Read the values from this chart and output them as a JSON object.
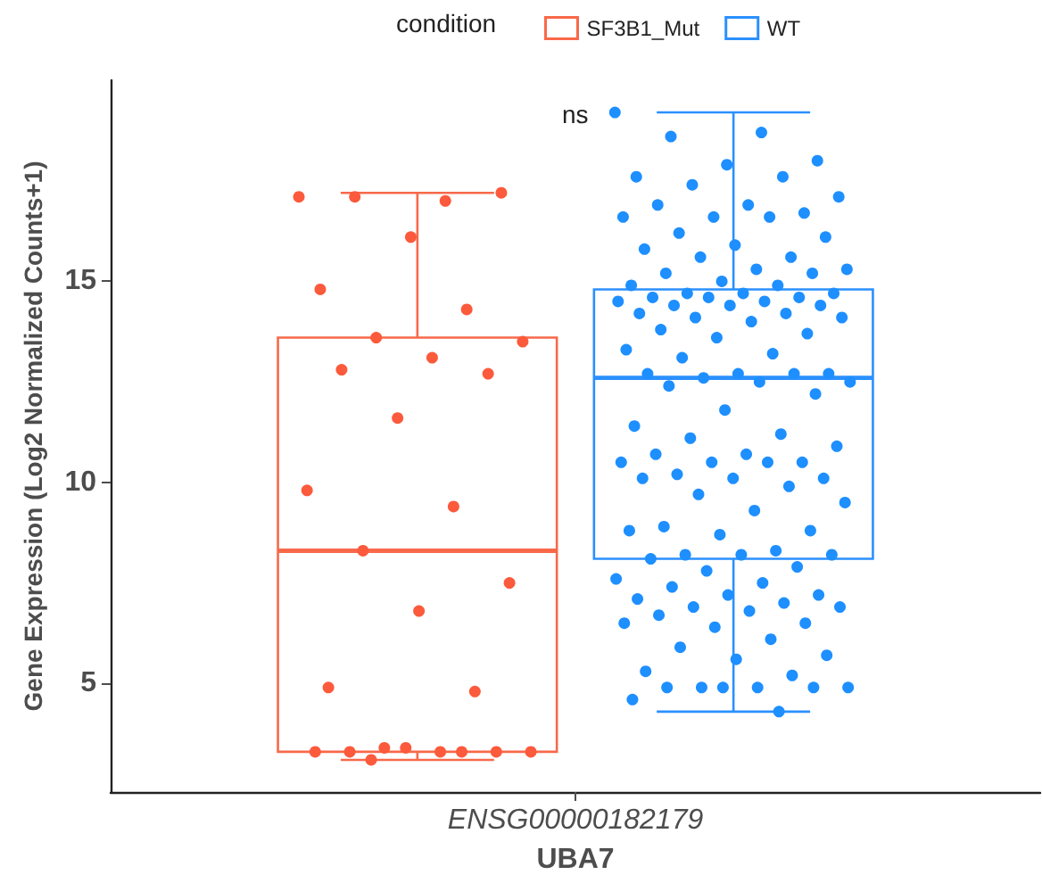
{
  "chart_data": {
    "type": "box",
    "xlabel": "UBA7",
    "ylabel": "Gene Expression (Log2 Normalized Counts+1)",
    "legend_title": "condition",
    "legend": "top",
    "grid": false,
    "marker": "circle",
    "annotations": [
      "ns"
    ],
    "categories": [
      "ENSG00000182179"
    ],
    "ylim": [
      2.3,
      20.0
    ],
    "yticks": [
      5,
      10,
      15
    ],
    "series": [
      {
        "name": "SF3B1_Mut",
        "color": "#f8694a",
        "boxes": [
          {
            "low": 3.1,
            "q1": 3.3,
            "median": 8.3,
            "q3": 13.6,
            "high": 17.2
          }
        ]
      },
      {
        "name": "WT",
        "color": "#2b90ff",
        "boxes": [
          {
            "low": 4.3,
            "q1": 8.1,
            "median": 12.6,
            "q3": 14.8,
            "high": 19.2
          }
        ]
      },
      {
        "type": "scatter",
        "color": "#fc5a3c",
        "x": [
          "ENSG00000182179",
          "ENSG00000182179",
          "ENSG00000182179",
          "ENSG00000182179",
          "ENSG00000182179",
          "ENSG00000182179",
          "ENSG00000182179",
          "ENSG00000182179",
          "ENSG00000182179",
          "ENSG00000182179",
          "ENSG00000182179",
          "ENSG00000182179",
          "ENSG00000182179",
          "ENSG00000182179",
          "ENSG00000182179",
          "ENSG00000182179",
          "ENSG00000182179",
          "ENSG00000182179",
          "ENSG00000182179",
          "ENSG00000182179",
          "ENSG00000182179",
          "ENSG00000182179",
          "ENSG00000182179",
          "ENSG00000182179",
          "ENSG00000182179",
          "ENSG00000182179",
          "ENSG00000182179",
          "ENSG00000182179",
          "ENSG00000182179"
        ],
        "values": [
          17.1,
          17.0,
          17.1,
          17.2,
          16.1,
          14.8,
          14.3,
          13.6,
          13.5,
          13.1,
          12.8,
          12.7,
          11.6,
          9.8,
          9.4,
          8.3,
          7.5,
          6.8,
          4.9,
          4.8,
          3.4,
          3.3,
          3.3,
          3.3,
          3.3,
          3.4,
          3.3,
          3.3,
          3.1
        ]
      },
      {
        "type": "scatter",
        "color": "#1e8fff",
        "x": [
          "ENSG00000182179",
          "ENSG00000182179",
          "ENSG00000182179",
          "ENSG00000182179",
          "ENSG00000182179",
          "ENSG00000182179",
          "ENSG00000182179",
          "ENSG00000182179",
          "ENSG00000182179",
          "ENSG00000182179",
          "ENSG00000182179",
          "ENSG00000182179",
          "ENSG00000182179",
          "ENSG00000182179",
          "ENSG00000182179",
          "ENSG00000182179",
          "ENSG00000182179",
          "ENSG00000182179",
          "ENSG00000182179",
          "ENSG00000182179",
          "ENSG00000182179",
          "ENSG00000182179",
          "ENSG00000182179",
          "ENSG00000182179",
          "ENSG00000182179",
          "ENSG00000182179",
          "ENSG00000182179",
          "ENSG00000182179",
          "ENSG00000182179",
          "ENSG00000182179",
          "ENSG00000182179",
          "ENSG00000182179",
          "ENSG00000182179",
          "ENSG00000182179",
          "ENSG00000182179",
          "ENSG00000182179",
          "ENSG00000182179",
          "ENSG00000182179",
          "ENSG00000182179",
          "ENSG00000182179",
          "ENSG00000182179",
          "ENSG00000182179",
          "ENSG00000182179",
          "ENSG00000182179",
          "ENSG00000182179",
          "ENSG00000182179",
          "ENSG00000182179",
          "ENSG00000182179",
          "ENSG00000182179",
          "ENSG00000182179",
          "ENSG00000182179",
          "ENSG00000182179",
          "ENSG00000182179",
          "ENSG00000182179",
          "ENSG00000182179",
          "ENSG00000182179",
          "ENSG00000182179",
          "ENSG00000182179",
          "ENSG00000182179",
          "ENSG00000182179",
          "ENSG00000182179",
          "ENSG00000182179",
          "ENSG00000182179",
          "ENSG00000182179",
          "ENSG00000182179",
          "ENSG00000182179",
          "ENSG00000182179",
          "ENSG00000182179",
          "ENSG00000182179",
          "ENSG00000182179",
          "ENSG00000182179",
          "ENSG00000182179",
          "ENSG00000182179",
          "ENSG00000182179",
          "ENSG00000182179",
          "ENSG00000182179",
          "ENSG00000182179",
          "ENSG00000182179",
          "ENSG00000182179",
          "ENSG00000182179",
          "ENSG00000182179",
          "ENSG00000182179",
          "ENSG00000182179",
          "ENSG00000182179",
          "ENSG00000182179",
          "ENSG00000182179",
          "ENSG00000182179",
          "ENSG00000182179",
          "ENSG00000182179",
          "ENSG00000182179",
          "ENSG00000182179",
          "ENSG00000182179",
          "ENSG00000182179",
          "ENSG00000182179",
          "ENSG00000182179",
          "ENSG00000182179",
          "ENSG00000182179",
          "ENSG00000182179",
          "ENSG00000182179",
          "ENSG00000182179",
          "ENSG00000182179",
          "ENSG00000182179",
          "ENSG00000182179",
          "ENSG00000182179",
          "ENSG00000182179",
          "ENSG00000182179",
          "ENSG00000182179",
          "ENSG00000182179",
          "ENSG00000182179",
          "ENSG00000182179",
          "ENSG00000182179",
          "ENSG00000182179",
          "ENSG00000182179",
          "ENSG00000182179",
          "ENSG00000182179",
          "ENSG00000182179",
          "ENSG00000182179"
        ],
        "values": [
          19.2,
          18.7,
          18.6,
          18.0,
          17.9,
          17.6,
          17.6,
          17.4,
          17.1,
          16.9,
          16.9,
          16.7,
          16.6,
          16.6,
          16.6,
          16.2,
          16.1,
          15.9,
          15.8,
          15.6,
          15.6,
          15.3,
          15.3,
          15.2,
          15.2,
          15.0,
          14.9,
          14.9,
          14.7,
          14.7,
          14.7,
          14.6,
          14.6,
          14.6,
          14.5,
          14.5,
          14.4,
          14.4,
          14.4,
          14.2,
          14.2,
          14.1,
          14.1,
          14.0,
          13.8,
          13.7,
          13.6,
          13.3,
          13.2,
          13.1,
          12.7,
          12.7,
          12.7,
          12.7,
          12.6,
          12.5,
          12.5,
          12.4,
          12.2,
          11.8,
          11.4,
          11.2,
          11.1,
          10.9,
          10.7,
          10.7,
          10.5,
          10.5,
          10.5,
          10.5,
          10.2,
          10.1,
          10.1,
          10.1,
          9.9,
          9.7,
          9.5,
          9.3,
          8.9,
          8.8,
          8.7,
          8.8,
          8.3,
          8.2,
          8.2,
          8.2,
          8.1,
          7.9,
          7.8,
          7.6,
          7.5,
          7.4,
          7.2,
          7.2,
          7.1,
          7.0,
          6.9,
          6.9,
          6.8,
          6.7,
          6.5,
          6.4,
          6.5,
          6.1,
          5.9,
          5.7,
          5.6,
          5.3,
          5.2,
          4.9,
          4.9,
          4.9,
          4.9,
          4.9,
          4.9,
          4.6,
          4.3
        ]
      }
    ]
  }
}
